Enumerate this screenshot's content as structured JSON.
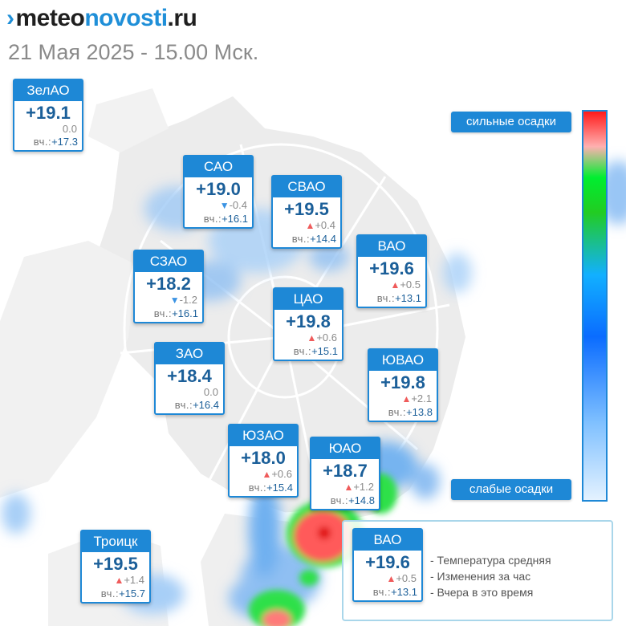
{
  "header": {
    "logo": {
      "mark": "›",
      "part1": "meteo",
      "part2": "novosti",
      "part3": ".ru"
    },
    "datetime": "21 Мая 2025 - 15.00 Мск."
  },
  "icons": {
    "rise": "▲",
    "fall": "▼"
  },
  "colors": {
    "card_border": "#1e88d6",
    "value_text": "#1b5f99",
    "rise": "#ef5b5b",
    "fall": "#3b93e3"
  },
  "legend": {
    "heavy": "сильные осадки",
    "light": "слабые осадки",
    "example": {
      "name": "ВАО",
      "temp": "+19.6",
      "change": "+0.5",
      "trend": "up",
      "yest_label": "вч.:",
      "yesterday": "+13.1"
    },
    "items": [
      "- Температура средняя",
      "- Изменения за час",
      "- Вчера в это время"
    ]
  },
  "districts": [
    {
      "name": "ЗелАО",
      "temp": "+19.1",
      "change": "0.0",
      "trend": "none",
      "yest_label": "вч.:",
      "yesterday": "+17.3"
    },
    {
      "name": "САО",
      "temp": "+19.0",
      "change": "-0.4",
      "trend": "down",
      "yest_label": "вч.:",
      "yesterday": "+16.1"
    },
    {
      "name": "СВАО",
      "temp": "+19.5",
      "change": "+0.4",
      "trend": "up",
      "yest_label": "вч.:",
      "yesterday": "+14.4"
    },
    {
      "name": "СЗАО",
      "temp": "+18.2",
      "change": "-1.2",
      "trend": "down",
      "yest_label": "вч.:",
      "yesterday": "+16.1"
    },
    {
      "name": "ВАО",
      "temp": "+19.6",
      "change": "+0.5",
      "trend": "up",
      "yest_label": "вч.:",
      "yesterday": "+13.1"
    },
    {
      "name": "ЦАО",
      "temp": "+19.8",
      "change": "+0.6",
      "trend": "up",
      "yest_label": "вч.:",
      "yesterday": "+15.1"
    },
    {
      "name": "ЗАО",
      "temp": "+18.4",
      "change": "0.0",
      "trend": "none",
      "yest_label": "вч.:",
      "yesterday": "+16.4"
    },
    {
      "name": "ЮВАО",
      "temp": "+19.8",
      "change": "+2.1",
      "trend": "up",
      "yest_label": "вч.:",
      "yesterday": "+13.8"
    },
    {
      "name": "ЮЗАО",
      "temp": "+18.0",
      "change": "+0.6",
      "trend": "up",
      "yest_label": "вч.:",
      "yesterday": "+15.4"
    },
    {
      "name": "ЮАО",
      "temp": "+18.7",
      "change": "+1.2",
      "trend": "up",
      "yest_label": "вч.:",
      "yesterday": "+14.8"
    },
    {
      "name": "Троицк",
      "temp": "+19.5",
      "change": "+1.4",
      "trend": "up",
      "yest_label": "вч.:",
      "yesterday": "+15.7"
    }
  ]
}
